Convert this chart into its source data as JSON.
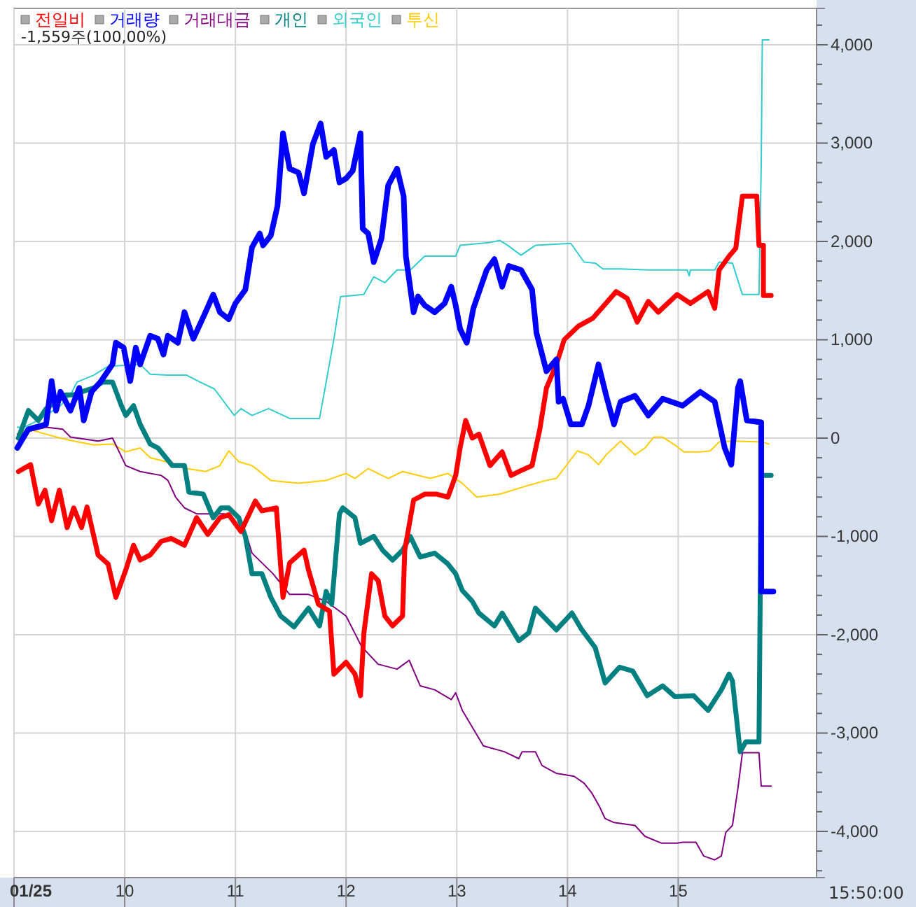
{
  "chart_data": {
    "type": "line",
    "xlim": [
      9,
      16.25
    ],
    "xticks": [
      {
        "value": 9,
        "label": "01/25"
      },
      10,
      11,
      12,
      13,
      14,
      15
    ],
    "ylim": [
      -4470,
      4370
    ],
    "yticks": [
      {
        "value": -4400,
        "label": null
      },
      {
        "value": -4200,
        "label": null
      },
      {
        "value": -4000,
        "label": "-4,000"
      },
      {
        "value": -3800,
        "label": null
      },
      {
        "value": -3600,
        "label": null
      },
      {
        "value": -3400,
        "label": null
      },
      {
        "value": -3200,
        "label": null
      },
      {
        "value": -3000,
        "label": "-3,000"
      },
      {
        "value": -2800,
        "label": null
      },
      {
        "value": -2600,
        "label": null
      },
      {
        "value": -2400,
        "label": null
      },
      {
        "value": -2200,
        "label": null
      },
      {
        "value": -2000,
        "label": "-2,000"
      },
      {
        "value": -1800,
        "label": null
      },
      {
        "value": -1600,
        "label": null
      },
      {
        "value": -1400,
        "label": null
      },
      {
        "value": -1200,
        "label": null
      },
      {
        "value": -1000,
        "label": "-1,000"
      },
      {
        "value": -800,
        "label": null
      },
      {
        "value": -600,
        "label": null
      },
      {
        "value": -400,
        "label": null
      },
      {
        "value": -200,
        "label": null
      },
      0,
      {
        "value": 200,
        "label": null
      },
      {
        "value": 400,
        "label": null
      },
      {
        "value": 600,
        "label": null
      },
      {
        "value": 800,
        "label": null
      },
      {
        "value": 1000,
        "label": "1,000"
      },
      {
        "value": 1200,
        "label": null
      },
      {
        "value": 1400,
        "label": null
      },
      {
        "value": 1600,
        "label": null
      },
      {
        "value": 1800,
        "label": null
      },
      {
        "value": 2000,
        "label": "2,000"
      },
      {
        "value": 2200,
        "label": null
      },
      {
        "value": 2400,
        "label": null
      },
      {
        "value": 2600,
        "label": null
      },
      {
        "value": 2800,
        "label": null
      },
      {
        "value": 3000,
        "label": "3,000"
      },
      {
        "value": 3200,
        "label": null
      },
      {
        "value": 3400,
        "label": null
      },
      {
        "value": 3600,
        "label": null
      },
      {
        "value": 3800,
        "label": null
      },
      {
        "value": 4000,
        "label": "4,000"
      },
      {
        "value": 4200,
        "label": null
      }
    ],
    "grid": true,
    "legend": "top left",
    "line_style": "solid",
    "marker": "none",
    "annotations": [
      "-1,559주(100,00%)",
      "15:50:00"
    ],
    "series": [
      {
        "name": "전일비",
        "color": "#ff0000",
        "x": [
          9.04,
          9.15,
          9.22,
          9.28,
          9.34,
          9.41,
          9.48,
          9.54,
          9.61,
          9.66,
          9.76,
          9.85,
          9.92,
          10.01,
          10.08,
          10.14,
          10.23,
          10.33,
          10.42,
          10.54,
          10.65,
          10.75,
          10.86,
          10.94,
          11.05,
          11.18,
          11.24,
          11.37,
          11.43,
          11.49,
          11.62,
          11.66,
          11.75,
          11.85,
          11.89,
          12.0,
          12.08,
          12.13,
          12.16,
          12.23,
          12.29,
          12.35,
          12.42,
          12.51,
          12.53,
          12.61,
          12.71,
          12.82,
          12.92,
          12.99,
          13.03,
          13.08,
          13.14,
          13.2,
          13.3,
          13.41,
          13.49,
          13.58,
          13.68,
          13.75,
          13.81,
          13.9,
          13.97,
          14.1,
          14.23,
          14.44,
          14.54,
          14.63,
          14.73,
          14.82,
          14.99,
          15.11,
          15.27,
          15.33,
          15.37,
          15.46,
          15.52,
          15.58,
          15.71,
          15.73,
          15.77,
          15.77,
          15.84
        ],
        "values": [
          -340,
          -270,
          -670,
          -530,
          -840,
          -530,
          -910,
          -710,
          -910,
          -700,
          -1190,
          -1280,
          -1620,
          -1340,
          -1090,
          -1240,
          -1190,
          -1050,
          -1020,
          -1090,
          -810,
          -980,
          -810,
          -780,
          -950,
          -640,
          -740,
          -710,
          -1620,
          -1270,
          -1140,
          -1340,
          -1690,
          -1760,
          -2400,
          -2280,
          -2400,
          -2620,
          -1990,
          -1380,
          -1450,
          -1810,
          -1910,
          -1810,
          -1140,
          -630,
          -570,
          -570,
          -600,
          -380,
          -100,
          180,
          0,
          40,
          -280,
          -140,
          -380,
          -330,
          -280,
          90,
          510,
          750,
          1000,
          1140,
          1220,
          1490,
          1420,
          1180,
          1390,
          1280,
          1460,
          1370,
          1490,
          1320,
          1710,
          1850,
          1930,
          2460,
          2460,
          1960,
          1960,
          1450,
          1450
        ]
      },
      {
        "name": "거래량",
        "color": "#0000ff",
        "x": [
          9.03,
          9.13,
          9.29,
          9.34,
          9.38,
          9.42,
          9.51,
          9.59,
          9.63,
          9.7,
          9.78,
          9.89,
          9.92,
          9.99,
          10.05,
          10.1,
          10.14,
          10.23,
          10.3,
          10.35,
          10.39,
          10.48,
          10.54,
          10.62,
          10.73,
          10.8,
          10.86,
          10.94,
          11.0,
          11.09,
          11.15,
          11.22,
          11.25,
          11.32,
          11.38,
          11.43,
          11.49,
          11.57,
          11.62,
          11.7,
          11.77,
          11.82,
          11.89,
          11.94,
          12.0,
          12.06,
          12.13,
          12.15,
          12.2,
          12.25,
          12.32,
          12.38,
          12.46,
          12.52,
          12.54,
          12.61,
          12.65,
          12.71,
          12.8,
          12.89,
          12.95,
          12.99,
          13.03,
          13.09,
          13.15,
          13.27,
          13.34,
          13.41,
          13.47,
          13.58,
          13.68,
          13.72,
          13.81,
          13.9,
          13.92,
          13.96,
          14.03,
          14.13,
          14.19,
          14.28,
          14.35,
          14.42,
          14.48,
          14.61,
          14.73,
          14.86,
          15.04,
          15.2,
          15.33,
          15.42,
          15.48,
          15.54,
          15.56,
          15.62,
          15.75,
          15.75,
          15.86
        ],
        "values": [
          -100,
          90,
          140,
          580,
          280,
          470,
          280,
          510,
          180,
          470,
          570,
          750,
          970,
          920,
          580,
          920,
          750,
          1040,
          1010,
          850,
          1040,
          970,
          1280,
          1010,
          1280,
          1460,
          1280,
          1210,
          1370,
          1510,
          1940,
          2080,
          1960,
          2060,
          2360,
          3100,
          2740,
          2700,
          2490,
          2990,
          3200,
          2860,
          2930,
          2600,
          2640,
          2720,
          3100,
          2130,
          2080,
          1790,
          2030,
          2570,
          2740,
          2460,
          1850,
          1280,
          1440,
          1350,
          1280,
          1370,
          1540,
          1350,
          1110,
          970,
          1320,
          1710,
          1820,
          1540,
          1750,
          1710,
          1510,
          1070,
          680,
          800,
          370,
          400,
          140,
          140,
          330,
          750,
          430,
          140,
          370,
          430,
          230,
          400,
          330,
          470,
          370,
          -100,
          -270,
          510,
          580,
          180,
          160,
          -1560,
          -1560
        ]
      },
      {
        "name": "거래대금",
        "color": "#800080",
        "x": [
          9.03,
          9.29,
          9.44,
          9.51,
          9.76,
          9.89,
          10.01,
          10.14,
          10.33,
          10.39,
          10.46,
          10.54,
          10.65,
          10.9,
          11.09,
          11.15,
          11.34,
          11.49,
          11.66,
          11.82,
          12.0,
          12.14,
          12.29,
          12.46,
          12.57,
          12.67,
          12.8,
          12.95,
          12.99,
          13.05,
          13.14,
          13.24,
          13.43,
          13.56,
          13.59,
          13.71,
          13.77,
          13.9,
          14.06,
          14.15,
          14.22,
          14.29,
          14.34,
          14.42,
          14.61,
          14.7,
          14.85,
          14.99,
          15.04,
          15.16,
          15.23,
          15.33,
          15.39,
          15.43,
          15.49,
          15.54,
          15.58,
          15.73,
          15.75,
          15.84
        ],
        "values": [
          40,
          110,
          90,
          10,
          -30,
          0,
          -280,
          -340,
          -380,
          -430,
          -600,
          -710,
          -770,
          -770,
          -950,
          -1170,
          -1380,
          -1590,
          -1590,
          -1660,
          -1810,
          -2120,
          -2300,
          -2350,
          -2260,
          -2520,
          -2560,
          -2660,
          -2590,
          -2770,
          -2940,
          -3130,
          -3190,
          -3260,
          -3190,
          -3190,
          -3330,
          -3410,
          -3440,
          -3510,
          -3610,
          -3750,
          -3870,
          -3910,
          -3940,
          -4050,
          -4120,
          -4120,
          -4110,
          -4110,
          -4250,
          -4290,
          -4250,
          -4010,
          -3940,
          -3560,
          -3200,
          -3200,
          -3540,
          -3540
        ]
      },
      {
        "name": "개인",
        "color": "#008080",
        "x": [
          9.04,
          9.13,
          9.22,
          9.29,
          9.38,
          9.47,
          9.54,
          9.61,
          9.72,
          9.8,
          9.89,
          9.97,
          10.01,
          10.08,
          10.14,
          10.23,
          10.3,
          10.43,
          10.54,
          10.58,
          10.71,
          10.8,
          10.87,
          10.94,
          11.03,
          11.09,
          11.15,
          11.24,
          11.32,
          11.41,
          11.53,
          11.66,
          11.76,
          11.82,
          11.87,
          11.94,
          11.97,
          12.08,
          12.13,
          12.25,
          12.33,
          12.42,
          12.51,
          12.58,
          12.67,
          12.8,
          12.92,
          12.99,
          13.05,
          13.14,
          13.2,
          13.34,
          13.41,
          13.56,
          13.65,
          13.71,
          13.9,
          14.04,
          14.13,
          14.25,
          14.34,
          14.47,
          14.59,
          14.72,
          14.86,
          14.97,
          15.14,
          15.27,
          15.39,
          15.46,
          15.49,
          15.56,
          15.61,
          15.73,
          15.75,
          15.84
        ],
        "values": [
          0,
          280,
          180,
          300,
          370,
          440,
          440,
          470,
          510,
          570,
          570,
          330,
          230,
          330,
          140,
          -60,
          -100,
          -280,
          -280,
          -550,
          -570,
          -810,
          -710,
          -710,
          -810,
          -1000,
          -1380,
          -1380,
          -1620,
          -1810,
          -1920,
          -1730,
          -1910,
          -1560,
          -1690,
          -770,
          -710,
          -810,
          -1070,
          -1000,
          -1140,
          -1240,
          -1140,
          -1000,
          -1210,
          -1170,
          -1280,
          -1380,
          -1550,
          -1660,
          -1780,
          -1910,
          -1780,
          -2060,
          -1980,
          -1730,
          -1950,
          -1780,
          -1950,
          -2130,
          -2490,
          -2330,
          -2370,
          -2620,
          -2520,
          -2630,
          -2620,
          -2770,
          -2560,
          -2400,
          -2470,
          -3190,
          -3090,
          -3090,
          -380,
          -380
        ]
      },
      {
        "name": "외국인",
        "color": "#33cccc",
        "x": [
          9.03,
          9.09,
          9.22,
          9.42,
          9.51,
          9.57,
          9.72,
          9.85,
          10.14,
          10.23,
          10.39,
          10.56,
          10.68,
          10.81,
          10.99,
          11.05,
          11.15,
          11.3,
          11.49,
          11.76,
          11.82,
          11.89,
          11.95,
          12.16,
          12.25,
          12.35,
          12.46,
          12.58,
          12.71,
          12.99,
          13.03,
          13.3,
          13.39,
          13.46,
          13.58,
          13.71,
          14.03,
          14.15,
          14.25,
          14.32,
          14.48,
          14.73,
          15.08,
          15.1,
          15.11,
          15.33,
          15.37,
          15.49,
          15.58,
          15.73,
          15.75,
          15.76,
          15.82
        ],
        "values": [
          110,
          110,
          180,
          330,
          440,
          570,
          640,
          730,
          750,
          650,
          640,
          640,
          570,
          500,
          230,
          300,
          230,
          300,
          200,
          200,
          570,
          1010,
          1440,
          1460,
          1640,
          1580,
          1710,
          1710,
          1850,
          1850,
          1960,
          1990,
          2010,
          1960,
          1860,
          1960,
          1980,
          1790,
          1780,
          1720,
          1720,
          1710,
          1710,
          1650,
          1710,
          1710,
          1790,
          1780,
          1460,
          1460,
          2770,
          4050,
          4050
        ]
      },
      {
        "name": "투신",
        "color": "#ffcc00",
        "x": [
          9.03,
          9.13,
          9.29,
          9.42,
          9.54,
          9.72,
          9.89,
          10.01,
          10.14,
          10.23,
          10.48,
          10.56,
          10.73,
          10.86,
          10.94,
          11.03,
          11.15,
          11.32,
          11.57,
          11.82,
          12.0,
          12.08,
          12.2,
          12.38,
          12.51,
          12.76,
          12.92,
          13.05,
          13.18,
          13.39,
          13.65,
          13.81,
          13.9,
          14.09,
          14.19,
          14.28,
          14.35,
          14.48,
          14.61,
          14.7,
          14.78,
          14.86,
          14.97,
          15.05,
          15.2,
          15.29,
          15.37,
          15.49,
          15.75,
          15.82
        ],
        "values": [
          40,
          90,
          40,
          0,
          -30,
          -70,
          -60,
          -140,
          -100,
          -200,
          -270,
          -310,
          -340,
          -280,
          -130,
          -240,
          -280,
          -430,
          -460,
          -430,
          -360,
          -410,
          -310,
          -410,
          -340,
          -410,
          -360,
          -460,
          -600,
          -570,
          -480,
          -430,
          -410,
          -130,
          -170,
          -270,
          -170,
          -30,
          -170,
          -100,
          10,
          10,
          -70,
          -140,
          -140,
          -130,
          -40,
          -30,
          -40,
          -60
        ]
      }
    ]
  }
}
